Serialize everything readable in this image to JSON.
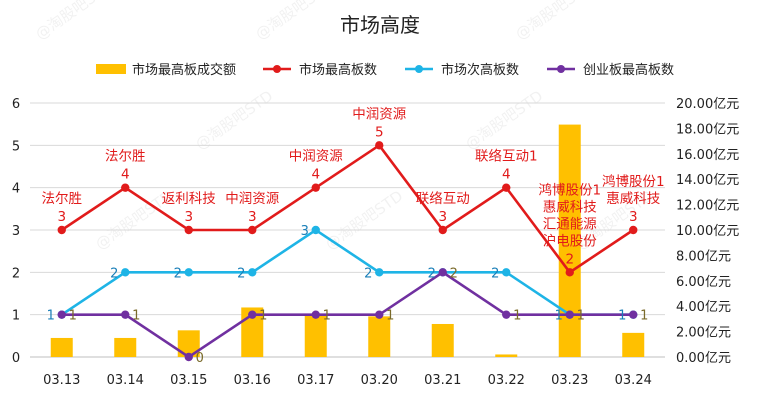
{
  "chart_data": {
    "type": "bar",
    "title": "市场高度",
    "categories": [
      "03.13",
      "03.14",
      "03.15",
      "03.16",
      "03.17",
      "03.20",
      "03.21",
      "03.22",
      "03.23",
      "03.24"
    ],
    "left_axis": {
      "ticks": [
        "0",
        "1",
        "2",
        "3",
        "4",
        "5",
        "6"
      ],
      "ylim": [
        0,
        6
      ]
    },
    "right_axis": {
      "ticks": [
        "0.00亿元",
        "2.00亿元",
        "4.00亿元",
        "6.00亿元",
        "8.00亿元",
        "10.00亿元",
        "12.00亿元",
        "14.00亿元",
        "16.00亿元",
        "18.00亿元",
        "20.00亿元"
      ],
      "ylim": [
        0,
        20
      ]
    },
    "grid": true,
    "legend_position": "top",
    "watermark": "@淘股吧STD",
    "series": [
      {
        "name": "市场最高板成交额",
        "type": "bar",
        "axis": "right",
        "color": "#ffc000",
        "values": [
          1.5,
          1.5,
          2.1,
          3.9,
          3.3,
          3.2,
          2.6,
          0.2,
          18.3,
          1.9
        ]
      },
      {
        "name": "市场最高板数",
        "type": "line",
        "axis": "left",
        "color": "#e11b1b",
        "values": [
          3,
          4,
          3,
          3,
          4,
          5,
          3,
          4,
          2,
          3
        ]
      },
      {
        "name": "市场次高板数",
        "type": "line",
        "axis": "left",
        "color": "#1eb4e6",
        "values": [
          1,
          2,
          2,
          2,
          3,
          2,
          2,
          2,
          1,
          1
        ]
      },
      {
        "name": "创业板最高板数",
        "type": "line",
        "axis": "left",
        "color": "#7030a0",
        "values": [
          1,
          1,
          0,
          1,
          1,
          1,
          2,
          1,
          1,
          1
        ]
      }
    ],
    "stock_annotations": [
      [
        "法尔胜"
      ],
      [
        "法尔胜"
      ],
      [
        "返利科技"
      ],
      [
        "中润资源"
      ],
      [
        "中润资源"
      ],
      [
        "中润资源"
      ],
      [
        "联络互动"
      ],
      [
        "联络互动1"
      ],
      [
        "鸿博股份1",
        "惠威科技",
        "汇通能源",
        "沪电股份"
      ],
      [
        "鸿博股份1",
        "惠威科技"
      ]
    ]
  }
}
